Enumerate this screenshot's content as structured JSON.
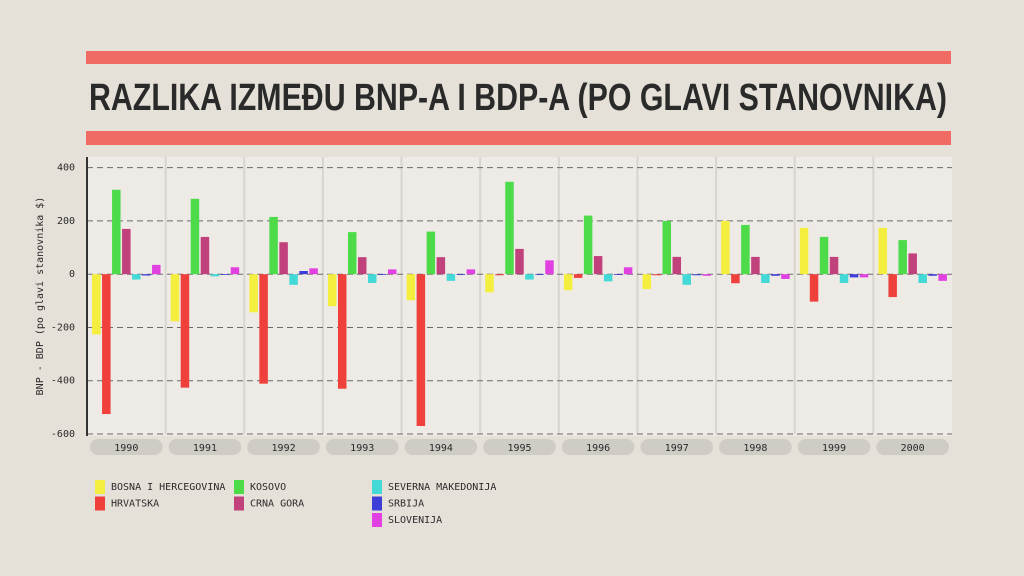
{
  "chart_data": {
    "type": "bar",
    "title": "RAZLIKA IZMEĐU BNP-A I BDP-A (PO GLAVI STANOVNIKA)",
    "y_label": "BNP - BDP (po glavi stanovnika $)",
    "categories": [
      "1990",
      "1991",
      "1992",
      "1993",
      "1994",
      "1995",
      "1996",
      "1997",
      "1998",
      "1999",
      "2000"
    ],
    "series": [
      {
        "name": "BOSNA I HERCEGOVINA",
        "color": "#f4ee3e",
        "values": [
          -226,
          -177,
          -143,
          -120,
          -98,
          -68,
          -60,
          -56,
          200,
          174,
          174
        ]
      },
      {
        "name": "HRVATSKA",
        "color": "#ef403c",
        "values": [
          -525,
          -426,
          -411,
          -430,
          -570,
          -4,
          -14,
          -4,
          -34,
          -103,
          -86
        ]
      },
      {
        "name": "KOSOVO",
        "color": "#4ddb4a",
        "values": [
          317,
          283,
          215,
          158,
          160,
          347,
          220,
          200,
          185,
          140,
          128
        ]
      },
      {
        "name": "CRNA GORA",
        "color": "#c0417c",
        "values": [
          170,
          140,
          120,
          64,
          64,
          95,
          68,
          65,
          65,
          65,
          78
        ]
      },
      {
        "name": "SEVERNA MAKEDONIJA",
        "color": "#43d9d6",
        "values": [
          -20,
          -8,
          -40,
          -33,
          -25,
          -20,
          -27,
          -40,
          -33,
          -33,
          -33
        ]
      },
      {
        "name": "SRBIJA",
        "color": "#3d3dd8",
        "values": [
          -5,
          -3,
          12,
          -3,
          -3,
          -3,
          -3,
          -4,
          -6,
          -12,
          -6
        ]
      },
      {
        "name": "SLOVENIJA",
        "color": "#e041e0",
        "values": [
          35,
          26,
          22,
          18,
          18,
          52,
          26,
          -6,
          -18,
          -12,
          -25
        ]
      }
    ],
    "ylim": [
      -600,
      440
    ],
    "yticks": [
      400,
      200,
      0,
      -200,
      -400,
      -600
    ],
    "grid": true
  }
}
